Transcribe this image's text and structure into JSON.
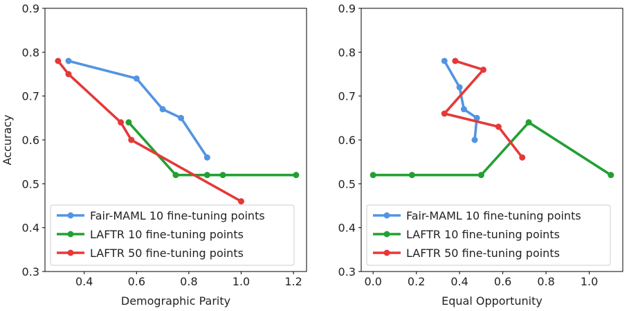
{
  "chart_data": [
    {
      "type": "line",
      "xlabel": "Demographic Parity",
      "ylabel": "Accuracy",
      "xlim": [
        0.25,
        1.25
      ],
      "ylim": [
        0.3,
        0.9
      ],
      "xticks": [
        0.4,
        0.6,
        0.8,
        1.0,
        1.2
      ],
      "xtick_labels": [
        "0.4",
        "0.6",
        "0.8",
        "1.0",
        "1.2"
      ],
      "yticks": [
        0.3,
        0.4,
        0.5,
        0.6,
        0.7,
        0.8,
        0.9
      ],
      "ytick_labels": [
        "0.3",
        "0.4",
        "0.5",
        "0.6",
        "0.7",
        "0.8",
        "0.9"
      ],
      "legend_position": "lower-left",
      "series": [
        {
          "name": "Fair-MAML 10 fine-tuning points",
          "color": "#5294e2",
          "x": [
            0.34,
            0.6,
            0.7,
            0.77,
            0.87
          ],
          "y": [
            0.78,
            0.74,
            0.67,
            0.65,
            0.56
          ]
        },
        {
          "name": "LAFTR 10 fine-tuning points",
          "color": "#22a033",
          "x": [
            0.57,
            0.75,
            0.87,
            0.93,
            1.21
          ],
          "y": [
            0.64,
            0.52,
            0.52,
            0.52,
            0.52
          ]
        },
        {
          "name": "LAFTR 50 fine-tuning points",
          "color": "#e53838",
          "x": [
            0.3,
            0.34,
            0.54,
            0.58,
            1.0
          ],
          "y": [
            0.78,
            0.75,
            0.64,
            0.6,
            0.46
          ]
        }
      ]
    },
    {
      "type": "line",
      "xlabel": "Equal Opportunity",
      "ylabel": "",
      "xlim": [
        -0.055,
        1.155
      ],
      "ylim": [
        0.3,
        0.9
      ],
      "xticks": [
        0.0,
        0.2,
        0.4,
        0.6,
        0.8,
        1.0
      ],
      "xtick_labels": [
        "0.0",
        "0.2",
        "0.4",
        "0.6",
        "0.8",
        "1.0"
      ],
      "yticks": [
        0.3,
        0.4,
        0.5,
        0.6,
        0.7,
        0.8,
        0.9
      ],
      "ytick_labels": [
        "0.3",
        "0.4",
        "0.5",
        "0.6",
        "0.7",
        "0.8",
        "0.9"
      ],
      "legend_position": "lower-left",
      "series": [
        {
          "name": "Fair-MAML 10 fine-tuning points",
          "color": "#5294e2",
          "x": [
            0.33,
            0.4,
            0.42,
            0.48,
            0.47
          ],
          "y": [
            0.78,
            0.72,
            0.67,
            0.65,
            0.6
          ]
        },
        {
          "name": "LAFTR 10 fine-tuning points",
          "color": "#22a033",
          "x": [
            0.0,
            0.18,
            0.5,
            0.72,
            1.1
          ],
          "y": [
            0.52,
            0.52,
            0.52,
            0.64,
            0.52
          ]
        },
        {
          "name": "LAFTR 50 fine-tuning points",
          "color": "#e53838",
          "x": [
            0.38,
            0.51,
            0.33,
            0.58,
            0.69
          ],
          "y": [
            0.78,
            0.76,
            0.66,
            0.63,
            0.56
          ]
        }
      ]
    }
  ]
}
